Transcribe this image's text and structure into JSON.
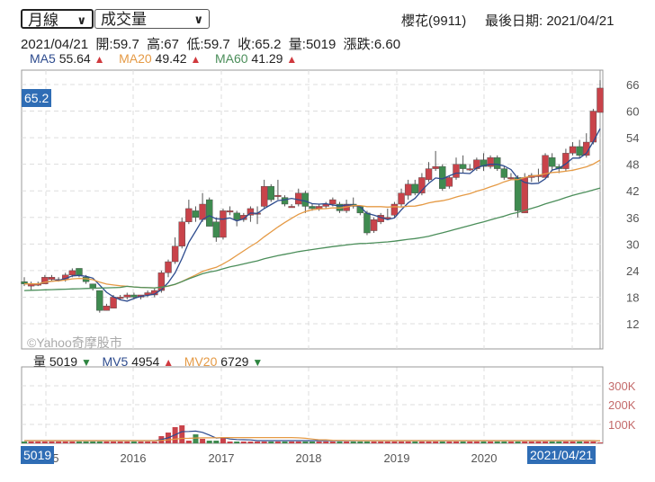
{
  "controls": {
    "period_select": {
      "value": "月線"
    },
    "indicator_select": {
      "value": "成交量"
    }
  },
  "header": {
    "stock": "櫻花(9911)",
    "last_date_label": "最後日期: 2021/04/21"
  },
  "quote": {
    "date": "2021/04/21",
    "open": "開:59.7",
    "high": "高:67",
    "low": "低:59.7",
    "close": "收:65.2",
    "volume": "量:5019",
    "change": "漲跌:6.60"
  },
  "ma_legend": [
    {
      "label": "MA5",
      "value": "55.64",
      "dir": "up",
      "color": "#2d4b8e"
    },
    {
      "label": "MA20",
      "value": "49.42",
      "dir": "up",
      "color": "#e59a45"
    },
    {
      "label": "MA60",
      "value": "41.29",
      "dir": "up",
      "color": "#4b8e5a"
    }
  ],
  "vol_legend": [
    {
      "label": "量",
      "value": "5019",
      "dir": "down",
      "color": "#222222"
    },
    {
      "label": "MV5",
      "value": "4954",
      "dir": "up",
      "color": "#2d4b8e"
    },
    {
      "label": "MV20",
      "value": "6729",
      "dir": "down",
      "color": "#e59a45"
    }
  ],
  "price_badge": "65.2",
  "volume_badge": "5019",
  "date_badge": "2021/04/21",
  "watermark": "©Yahoo奇摩股市",
  "colors": {
    "up": "#c9434a",
    "down": "#3f8b50",
    "ma5": "#2d4b8e",
    "ma20": "#e59a45",
    "ma60": "#4b8e5a",
    "badge": "#2f6db5"
  },
  "chart_data": [
    {
      "type": "candlestick",
      "title": "櫻花(9911) 月線",
      "xlabel": "",
      "ylabel": "",
      "x_ticks": [
        "2015",
        "2016",
        "2017",
        "2018",
        "2019",
        "2020",
        "2021/04/21"
      ],
      "y_ticks": [
        12,
        18,
        24,
        30,
        36,
        42,
        48,
        54,
        60,
        66
      ],
      "ylim": [
        8,
        68
      ],
      "grid": true,
      "legend": [
        "MA5 55.64",
        "MA20 49.42",
        "MA60 41.29"
      ],
      "last_candle": {
        "date": "2021/04/21",
        "open": 59.7,
        "high": 67,
        "low": 59.7,
        "close": 65.2
      },
      "candles_approx": [
        [
          21.5,
          21,
          22.5,
          20.5
        ],
        [
          20.5,
          21,
          21.5,
          19.5
        ],
        [
          21,
          21,
          21.5,
          20.5
        ],
        [
          21,
          22.5,
          23,
          21
        ],
        [
          22,
          22.5,
          23,
          21.5
        ],
        [
          22,
          22,
          22.5,
          21.5
        ],
        [
          22,
          23,
          23.5,
          21.5
        ],
        [
          23,
          24,
          24.5,
          22.5
        ],
        [
          24.5,
          23,
          24.5,
          22.5
        ],
        [
          22.5,
          21.5,
          23,
          21
        ],
        [
          21,
          20,
          21,
          19.5
        ],
        [
          19.5,
          15,
          19.5,
          14.5
        ],
        [
          15,
          16,
          16.5,
          15
        ],
        [
          15.5,
          18,
          18.5,
          15.5
        ],
        [
          18,
          18,
          18.5,
          17.5
        ],
        [
          18,
          18.5,
          19,
          17.5
        ],
        [
          18.5,
          18,
          19,
          17.5
        ],
        [
          18,
          18.5,
          18.5,
          17.5
        ],
        [
          18.5,
          19,
          19.5,
          18
        ],
        [
          18.5,
          19.5,
          20,
          18
        ],
        [
          19.5,
          23.5,
          24,
          19
        ],
        [
          23.5,
          26,
          26.5,
          22.5
        ],
        [
          26,
          29.5,
          31.5,
          25.5
        ],
        [
          29.5,
          35,
          36,
          29
        ],
        [
          35,
          38,
          40,
          34.5
        ],
        [
          37.5,
          36,
          38.5,
          35
        ],
        [
          35.5,
          39,
          41.5,
          35
        ],
        [
          40,
          34,
          40.5,
          34
        ],
        [
          35,
          31.5,
          36,
          30.5
        ],
        [
          31.5,
          37.5,
          38,
          31
        ],
        [
          37.5,
          37.5,
          38.5,
          36.5
        ],
        [
          37,
          35.5,
          37.5,
          34
        ],
        [
          35.5,
          36.5,
          37,
          35
        ],
        [
          36.5,
          38,
          38.5,
          35
        ],
        [
          37,
          37,
          38.5,
          34.5
        ],
        [
          38.5,
          43,
          44.5,
          38
        ],
        [
          43,
          40,
          43.5,
          39.5
        ],
        [
          41,
          41,
          44.5,
          40
        ],
        [
          40.5,
          39,
          41,
          38.5
        ],
        [
          38.5,
          38.5,
          39,
          38.5
        ],
        [
          39,
          41.5,
          42.5,
          38.5
        ],
        [
          41.5,
          38.5,
          42,
          37
        ],
        [
          38.5,
          38,
          39,
          37.5
        ],
        [
          38,
          38.5,
          39,
          37.5
        ],
        [
          38.5,
          39,
          39.5,
          38
        ],
        [
          39,
          40,
          40.5,
          38.5
        ],
        [
          39,
          37.5,
          39.5,
          37
        ],
        [
          37.5,
          39,
          40,
          37
        ],
        [
          39,
          38.5,
          40.5,
          38
        ],
        [
          38.5,
          37,
          38.5,
          36.5
        ],
        [
          37,
          32.5,
          37.5,
          32
        ],
        [
          33,
          35.5,
          36,
          32.5
        ],
        [
          35,
          36.5,
          37,
          34.5
        ],
        [
          36,
          36,
          38,
          35.5
        ],
        [
          36.5,
          39,
          39.5,
          36
        ],
        [
          39,
          41.5,
          42.5,
          38.5
        ],
        [
          41,
          43.5,
          44.5,
          40
        ],
        [
          43.5,
          41.5,
          44.5,
          41
        ],
        [
          41.5,
          45,
          46,
          41
        ],
        [
          44.5,
          47,
          48.5,
          44
        ],
        [
          47,
          47.5,
          51,
          46.5
        ],
        [
          47.5,
          42.5,
          48,
          42
        ],
        [
          43,
          45,
          45.5,
          42.5
        ],
        [
          45,
          48,
          49.5,
          44.5
        ],
        [
          48,
          47,
          50,
          46
        ],
        [
          47,
          47,
          48,
          46.5
        ],
        [
          47,
          49,
          49.5,
          46.5
        ],
        [
          49,
          47.5,
          50.5,
          46.5
        ],
        [
          47.5,
          49.5,
          50,
          47
        ],
        [
          49.5,
          47,
          50,
          46.5
        ],
        [
          47,
          45,
          47.5,
          44.5
        ],
        [
          45,
          45,
          46,
          44.5
        ],
        [
          45,
          37.5,
          45.5,
          36
        ],
        [
          37,
          45,
          46,
          37
        ],
        [
          45,
          45.5,
          46,
          44
        ],
        [
          45.5,
          45.5,
          47,
          44
        ],
        [
          45,
          50,
          50.5,
          45
        ],
        [
          49.5,
          47.5,
          50.5,
          46.5
        ],
        [
          47.5,
          47,
          48,
          46
        ],
        [
          47,
          50.5,
          51.5,
          46.5
        ],
        [
          50.5,
          52,
          53,
          50
        ],
        [
          52,
          50,
          53.5,
          49.5
        ],
        [
          50,
          53,
          55,
          49.5
        ],
        [
          53,
          60,
          60.5,
          52.5
        ],
        [
          59.7,
          65.2,
          67,
          59.7
        ]
      ],
      "series": [
        {
          "name": "MA5",
          "last": 55.64
        },
        {
          "name": "MA20",
          "last": 49.42
        },
        {
          "name": "MA60",
          "last": 41.29
        }
      ]
    },
    {
      "type": "bar",
      "title": "成交量",
      "y_ticks": [
        "100K",
        "200K",
        "300K"
      ],
      "ylim": [
        0,
        320000
      ],
      "legend": [
        "量 5019",
        "MV5 4954",
        "MV20 6729"
      ],
      "last_volume": 5019,
      "notes": "Volume spike ~mid 2016 to early 2017 peaking near 50K; otherwise near zero"
    }
  ]
}
